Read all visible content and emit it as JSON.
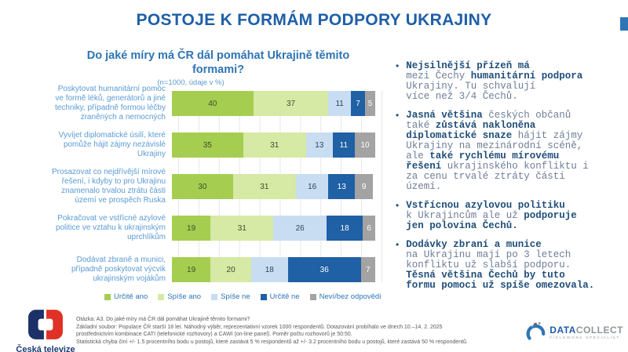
{
  "page": {
    "title": "POSTOJE K FORMÁM PODPORY UKRAJINY",
    "accent_color": "#2E75B6"
  },
  "chart_data": {
    "type": "bar",
    "stacked": true,
    "orientation": "horizontal",
    "title": "Do jaké míry má ČR dál pomáhat Ukrajině těmito formami?",
    "sample_note": "(n=1000, údaje v %)",
    "xlim": [
      0,
      100
    ],
    "grid": true,
    "legend_position": "bottom",
    "categories": [
      "Poskytovat humanitární pomoc ve formě léků, generátorů a jiné techniky, případně formou léčby zraněných a nemocných",
      "Vyvíjet diplomatické úsilí, které pomůže hájit zájmy nezávislé Ukrajiny",
      "Prosazovat co nejdřívější mírové řešení, i kdyby to pro Ukrajinu znamenalo trvalou ztrátu části území ve prospěch Ruska",
      "Pokračovat ve vstřícné azylové politice ve vztahu k ukrajinským uprchlíkům",
      "Dodávat zbraně a munici, případně poskytovat výcvik ukrajinským vojákům"
    ],
    "series": [
      {
        "name": "Určitě ano",
        "color": "#A5CE51",
        "label_color": "#44492e",
        "values": [
          40,
          35,
          30,
          19,
          19
        ]
      },
      {
        "name": "Spíše ano",
        "color": "#D6E9A5",
        "label_color": "#44492e",
        "values": [
          37,
          31,
          31,
          31,
          20
        ]
      },
      {
        "name": "Spíše ne",
        "color": "#C8DDF2",
        "label_color": "#33415c",
        "values": [
          11,
          13,
          16,
          26,
          18
        ]
      },
      {
        "name": "Určitě ne",
        "color": "#2060A5",
        "label_color": "#ffffff",
        "values": [
          7,
          11,
          13,
          18,
          36
        ]
      },
      {
        "name": "Neví/bez odpovědi",
        "color": "#A3A3A3",
        "label_color": "#ffffff",
        "values": [
          5,
          10,
          9,
          6,
          7
        ]
      }
    ]
  },
  "bullets": [
    [
      {
        "text": "Nejsilnější přízeň má",
        "bold": true,
        "br": true
      },
      {
        "text": "mezi Čechy ",
        "bold": false
      },
      {
        "text": "humanitární podpora",
        "bold": true,
        "br": true
      },
      {
        "text": "Ukrajiny. Tu schvalují",
        "bold": false,
        "br": true
      },
      {
        "text": "více než 3/4 Čechů.",
        "bold": false
      }
    ],
    [
      {
        "text": "Jasná většina",
        "bold": true
      },
      {
        "text": " českých občanů",
        "bold": false,
        "br": true
      },
      {
        "text": "také ",
        "bold": false
      },
      {
        "text": "zůstává nakloněna",
        "bold": true,
        "br": true
      },
      {
        "text": "diplomatické snaze",
        "bold": true
      },
      {
        "text": " hájit zájmy",
        "bold": false,
        "br": true
      },
      {
        "text": "Ukrajiny na mezinárodní scéně,",
        "bold": false,
        "br": true
      },
      {
        "text": "ale ",
        "bold": false
      },
      {
        "text": "také rychlému mírovému",
        "bold": true,
        "br": true
      },
      {
        "text": "řešení",
        "bold": true
      },
      {
        "text": " ukrajinského konfliktu i",
        "bold": false,
        "br": true
      },
      {
        "text": "za cenu trvalé ztráty části",
        "bold": false,
        "br": true
      },
      {
        "text": "území.",
        "bold": false
      }
    ],
    [
      {
        "text": "Vstřícnou azylovou politiku",
        "bold": true,
        "br": true
      },
      {
        "text": "k Ukrajincům ale už ",
        "bold": false
      },
      {
        "text": "podporuje",
        "bold": true,
        "br": true
      },
      {
        "text": "jen polovina Čechů.",
        "bold": true
      }
    ],
    [
      {
        "text": "Dodávky zbraní a munice",
        "bold": true,
        "br": true
      },
      {
        "text": "na Ukrajinu mají po 3 letech",
        "bold": false,
        "br": true
      },
      {
        "text": "konfliktu už slabší podporu.",
        "bold": false,
        "br": true
      },
      {
        "text": "Těsná většina Čechů by tuto",
        "bold": true,
        "br": true
      },
      {
        "text": "formu pomoci už spíše omezovala.",
        "bold": true
      }
    ]
  ],
  "footnotes": [
    "Otázka: A3. Do jaké míry má ČR dál pomáhat Ukrajině těmito formami?",
    "Základní soubor: Populace ČR starší 18 let. Náhodný výběr, reprezentativní vzorek 1000 respondentů. Dotazování probíhalo ve dnech 10.–14. 2. 2025",
    "prostřednictvím kombinace CATI (telefonické rozhovory) a CAWI (on-line panel). Poměr počtu rozhovorů je 50:50.",
    "Statistická chyba činí +/- 1.5 procentního bodu u postojů, které zastává 5 % respondentů až +/- 3.2 procentního bodu u postojů, které zastává 50 % respondentů."
  ],
  "logos": {
    "ct": {
      "name": "Česká televize",
      "navy": "#1B3168",
      "red": "#E03127"
    },
    "datacollect": {
      "word1": "DATA",
      "word2": "COLLECT",
      "tagline": "FIELDWORK SPECIALIST"
    }
  }
}
